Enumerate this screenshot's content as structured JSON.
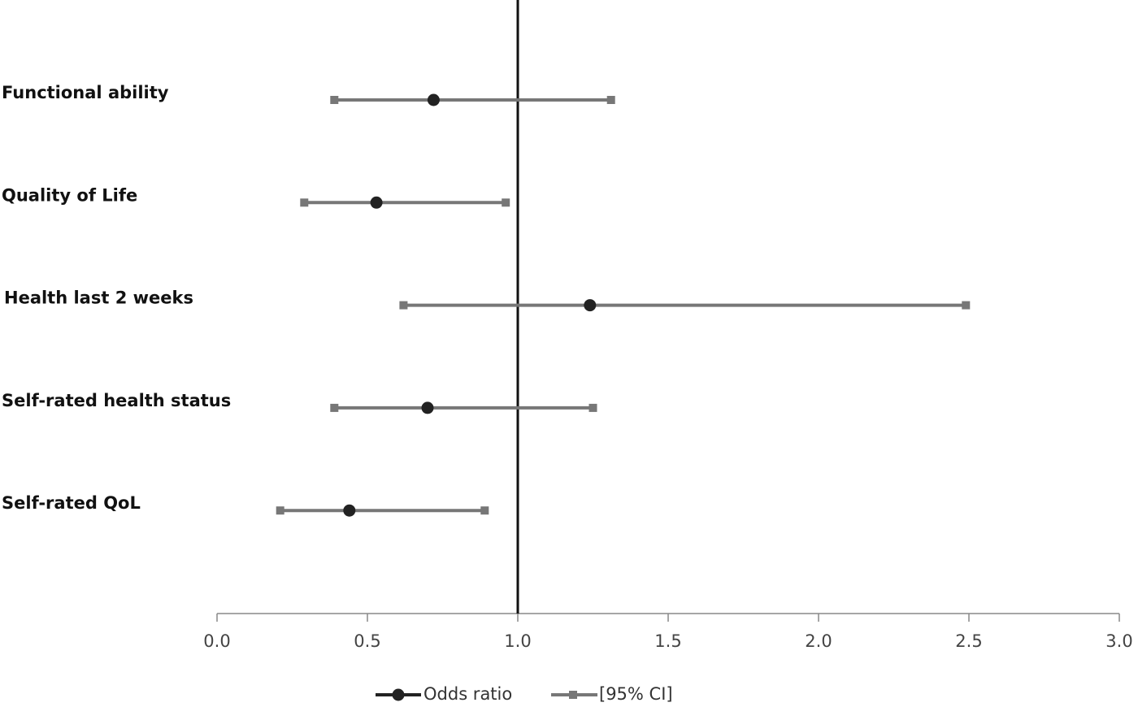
{
  "chart_data": {
    "type": "forest",
    "categories": [
      "Functional ability",
      "Quality of Life",
      "Health last 2 weeks",
      "Self-rated health status",
      "Self-rated QoL"
    ],
    "series": [
      {
        "name": "Odds ratio",
        "color": "#222222",
        "values": [
          0.72,
          0.53,
          1.24,
          0.7,
          0.44
        ]
      },
      {
        "name": "[95% CI]",
        "color": "#777777",
        "lower": [
          0.39,
          0.29,
          0.62,
          0.39,
          0.21
        ],
        "upper": [
          1.31,
          0.96,
          2.49,
          1.25,
          0.89
        ]
      }
    ],
    "xlim": [
      0,
      3
    ],
    "xticks": [
      {
        "value": 0,
        "label": "0.0"
      },
      0.5,
      {
        "value": 1,
        "label": "1.0"
      },
      1.5,
      {
        "value": 2,
        "label": "2.0"
      },
      2.5,
      {
        "value": 3,
        "label": "3.0"
      }
    ],
    "reference_line": 1
  }
}
